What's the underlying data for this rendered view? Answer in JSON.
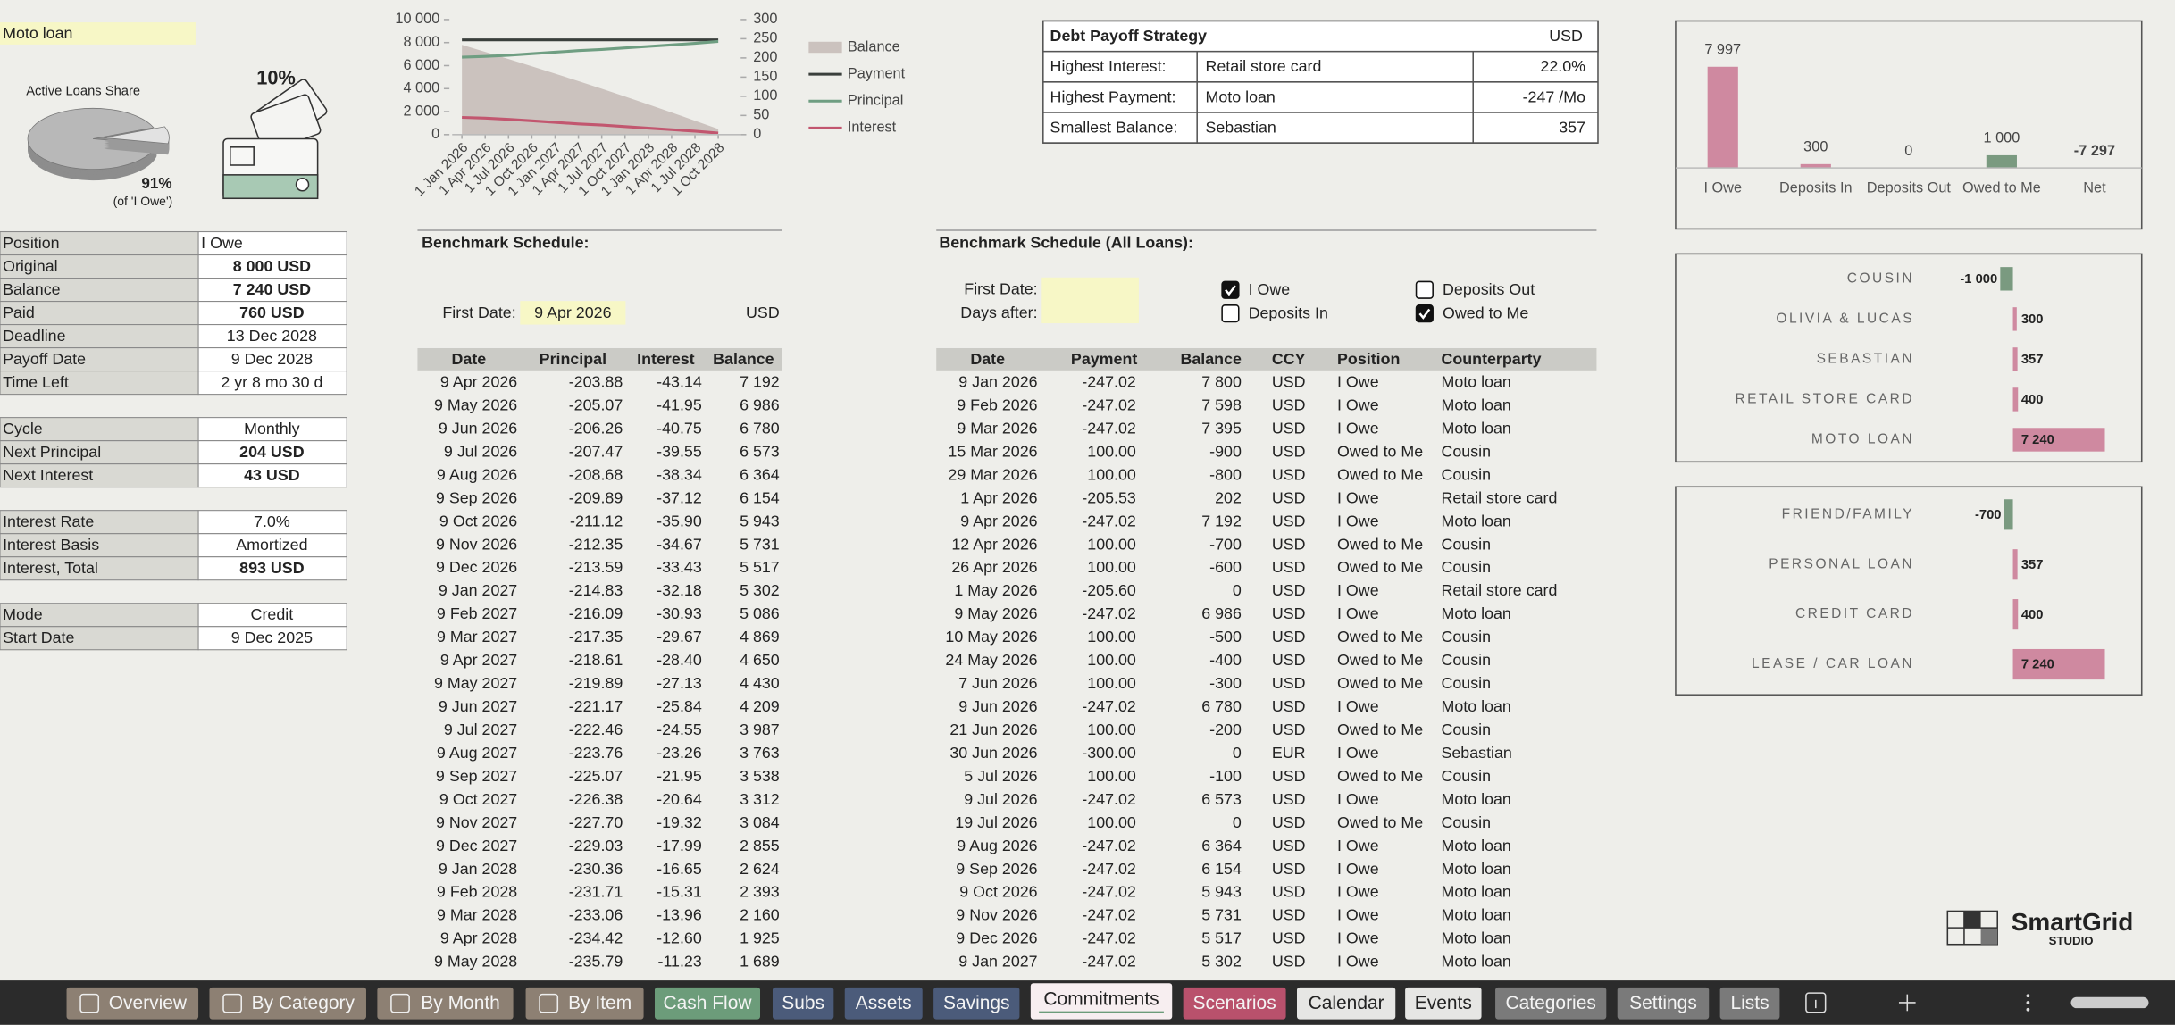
{
  "loan": {
    "name": "Moto loan",
    "share_title": "Active Loans Share",
    "card_pct": "10%",
    "pie": {
      "type": "pie",
      "values": [
        91,
        9
      ],
      "value_labels": [
        "91%",
        null
      ],
      "note": "(of 'I Owe')"
    }
  },
  "details": [
    [
      [
        "Position",
        "I Owe"
      ],
      [
        "Original",
        "8 000  USD"
      ],
      [
        "Balance",
        "7 240  USD"
      ],
      [
        "Paid",
        "760  USD"
      ],
      [
        "Deadline",
        "13 Dec 2028"
      ],
      [
        "Payoff Date",
        "9 Dec 2028"
      ],
      [
        "Time Left",
        "2 yr 8 mo 30 d"
      ]
    ],
    [
      [
        "Cycle",
        "Monthly"
      ],
      [
        "Next Principal",
        "204  USD"
      ],
      [
        "Next Interest",
        "43  USD"
      ]
    ],
    [
      [
        "Interest Rate",
        "7.0%"
      ],
      [
        "Interest Basis",
        "Amortized"
      ],
      [
        "Interest, Total",
        "893  USD"
      ]
    ],
    [
      [
        "Mode",
        "Credit"
      ],
      [
        "Start Date",
        "9 Dec 2025"
      ]
    ]
  ],
  "balance_chart": {
    "type": "line",
    "categories": [
      "1 Jan 2026",
      "1 Apr 2026",
      "1 Jul 2026",
      "1 Oct 2026",
      "1 Jan 2027",
      "1 Apr 2027",
      "1 Jul 2027",
      "1 Oct 2027",
      "1 Jan 2028",
      "1 Apr 2028",
      "1 Jul 2028",
      "1 Oct 2028"
    ],
    "series": [
      {
        "name": "Balance",
        "color": "#cbc2be",
        "axis": "y",
        "values": [
          7800,
          7192,
          6573,
          5943,
          5302,
          4650,
          3987,
          3312,
          2624,
          1925,
          1213,
          490
        ]
      },
      {
        "name": "Payment",
        "color": "#3a3f3c",
        "axis": "y2",
        "values": [
          247,
          247,
          247,
          247,
          247,
          247,
          247,
          247,
          247,
          247,
          247,
          247
        ]
      },
      {
        "name": "Principal",
        "color": "#6f9e82",
        "axis": "y2",
        "values": [
          202,
          204,
          207,
          211,
          215,
          219,
          222,
          226,
          230,
          234,
          238,
          243
        ]
      },
      {
        "name": "Interest",
        "color": "#c2566f",
        "axis": "y2",
        "values": [
          45,
          43,
          40,
          36,
          32,
          28,
          25,
          21,
          17,
          13,
          9,
          4
        ]
      }
    ],
    "ylim": [
      0,
      10000
    ],
    "yticks": [
      0,
      {
        "value": 2000,
        "label": "2 000"
      },
      {
        "value": 4000,
        "label": "4 000"
      },
      {
        "value": 6000,
        "label": "6 000"
      },
      {
        "value": 8000,
        "label": "8 000"
      },
      {
        "value": 10000,
        "label": "10 000"
      }
    ],
    "y2lim": [
      0,
      300
    ],
    "y2ticks": [
      0,
      50,
      100,
      150,
      200,
      250,
      300
    ]
  },
  "strategy": {
    "title": "Debt Payoff Strategy",
    "currency": "USD",
    "rows": [
      [
        "Highest Interest:",
        "Retail store card",
        "22.0%"
      ],
      [
        "Highest Payment:",
        "Moto loan",
        "-247 /Mo"
      ],
      [
        "Smallest Balance:",
        "Sebastian",
        "357"
      ]
    ]
  },
  "totals_chart": {
    "type": "bar",
    "categories": [
      "I Owe",
      "Deposits In",
      "Deposits Out",
      "Owed to Me",
      "Net"
    ],
    "values": [
      7997,
      300,
      0,
      1000,
      -7297
    ],
    "value_labels": [
      "7 997",
      "300",
      "0",
      "1 000",
      "-7 297"
    ],
    "colors": [
      "#cf89a0",
      "#cf89a0",
      "#cf89a0",
      "#7a9a80",
      "#cf89a0"
    ],
    "ylim": [
      0,
      8000
    ]
  },
  "counterparty_chart": {
    "type": "bar",
    "orientation": "horizontal",
    "categories": [
      "COUSIN",
      "OLIVIA & LUCAS",
      "SEBASTIAN",
      "RETAIL STORE CARD",
      "MOTO LOAN"
    ],
    "values": [
      -1000,
      300,
      357,
      400,
      7240
    ],
    "value_labels": [
      "-1 000",
      "300",
      "357",
      "400",
      "7 240"
    ],
    "color_positive": "#cf89a0",
    "color_negative": "#7a9a80",
    "xlim": [
      -1000,
      7300
    ]
  },
  "category_chart": {
    "type": "bar",
    "orientation": "horizontal",
    "categories": [
      "FRIEND/FAMILY",
      "PERSONAL LOAN",
      "CREDIT CARD",
      "LEASE / CAR LOAN"
    ],
    "values": [
      -700,
      357,
      400,
      7240
    ],
    "value_labels": [
      "-700",
      "357",
      "400",
      "7 240"
    ],
    "color_positive": "#cf89a0",
    "color_negative": "#7a9a80",
    "xlim": [
      -1000,
      7300
    ]
  },
  "schedule": {
    "title": "Benchmark Schedule:",
    "first_date_label": "First Date:",
    "first_date": "9 Apr 2026",
    "currency": "USD",
    "columns": [
      "Date",
      "Principal",
      "Interest",
      "Balance"
    ],
    "rows": [
      [
        "9 Apr 2026",
        "-203.88",
        "-43.14",
        "7 192"
      ],
      [
        "9 May 2026",
        "-205.07",
        "-41.95",
        "6 986"
      ],
      [
        "9 Jun 2026",
        "-206.26",
        "-40.75",
        "6 780"
      ],
      [
        "9 Jul 2026",
        "-207.47",
        "-39.55",
        "6 573"
      ],
      [
        "9 Aug 2026",
        "-208.68",
        "-38.34",
        "6 364"
      ],
      [
        "9 Sep 2026",
        "-209.89",
        "-37.12",
        "6 154"
      ],
      [
        "9 Oct 2026",
        "-211.12",
        "-35.90",
        "5 943"
      ],
      [
        "9 Nov 2026",
        "-212.35",
        "-34.67",
        "5 731"
      ],
      [
        "9 Dec 2026",
        "-213.59",
        "-33.43",
        "5 517"
      ],
      [
        "9 Jan 2027",
        "-214.83",
        "-32.18",
        "5 302"
      ],
      [
        "9 Feb 2027",
        "-216.09",
        "-30.93",
        "5 086"
      ],
      [
        "9 Mar 2027",
        "-217.35",
        "-29.67",
        "4 869"
      ],
      [
        "9 Apr 2027",
        "-218.61",
        "-28.40",
        "4 650"
      ],
      [
        "9 May 2027",
        "-219.89",
        "-27.13",
        "4 430"
      ],
      [
        "9 Jun 2027",
        "-221.17",
        "-25.84",
        "4 209"
      ],
      [
        "9 Jul 2027",
        "-222.46",
        "-24.55",
        "3 987"
      ],
      [
        "9 Aug 2027",
        "-223.76",
        "-23.26",
        "3 763"
      ],
      [
        "9 Sep 2027",
        "-225.07",
        "-21.95",
        "3 538"
      ],
      [
        "9 Oct 2027",
        "-226.38",
        "-20.64",
        "3 312"
      ],
      [
        "9 Nov 2027",
        "-227.70",
        "-19.32",
        "3 084"
      ],
      [
        "9 Dec 2027",
        "-229.03",
        "-17.99",
        "2 855"
      ],
      [
        "9 Jan 2028",
        "-230.36",
        "-16.65",
        "2 624"
      ],
      [
        "9 Feb 2028",
        "-231.71",
        "-15.31",
        "2 393"
      ],
      [
        "9 Mar 2028",
        "-233.06",
        "-13.96",
        "2 160"
      ],
      [
        "9 Apr 2028",
        "-234.42",
        "-12.60",
        "1 925"
      ],
      [
        "9 May 2028",
        "-235.79",
        "-11.23",
        "1 689"
      ]
    ]
  },
  "all_schedule": {
    "title": "Benchmark Schedule (All Loans):",
    "first_date_label": "First Date:",
    "days_after_label": "Days after:",
    "filters": [
      {
        "label": "I Owe",
        "checked": true
      },
      {
        "label": "Deposits Out",
        "checked": false
      },
      {
        "label": "Deposits In",
        "checked": false
      },
      {
        "label": "Owed to Me",
        "checked": true
      }
    ],
    "columns": [
      "Date",
      "Payment",
      "Balance",
      "CCY",
      "Position",
      "Counterparty"
    ],
    "rows": [
      [
        "9 Jan 2026",
        "-247.02",
        "7 800",
        "USD",
        "I Owe",
        "Moto loan"
      ],
      [
        "9 Feb 2026",
        "-247.02",
        "7 598",
        "USD",
        "I Owe",
        "Moto loan"
      ],
      [
        "9 Mar 2026",
        "-247.02",
        "7 395",
        "USD",
        "I Owe",
        "Moto loan"
      ],
      [
        "15 Mar 2026",
        "100.00",
        "-900",
        "USD",
        "Owed to Me",
        "Cousin"
      ],
      [
        "29 Mar 2026",
        "100.00",
        "-800",
        "USD",
        "Owed to Me",
        "Cousin"
      ],
      [
        "1 Apr 2026",
        "-205.53",
        "202",
        "USD",
        "I Owe",
        "Retail store card"
      ],
      [
        "9 Apr 2026",
        "-247.02",
        "7 192",
        "USD",
        "I Owe",
        "Moto loan"
      ],
      [
        "12 Apr 2026",
        "100.00",
        "-700",
        "USD",
        "Owed to Me",
        "Cousin"
      ],
      [
        "26 Apr 2026",
        "100.00",
        "-600",
        "USD",
        "Owed to Me",
        "Cousin"
      ],
      [
        "1 May 2026",
        "-205.60",
        "0",
        "USD",
        "I Owe",
        "Retail store card"
      ],
      [
        "9 May 2026",
        "-247.02",
        "6 986",
        "USD",
        "I Owe",
        "Moto loan"
      ],
      [
        "10 May 2026",
        "100.00",
        "-500",
        "USD",
        "Owed to Me",
        "Cousin"
      ],
      [
        "24 May 2026",
        "100.00",
        "-400",
        "USD",
        "Owed to Me",
        "Cousin"
      ],
      [
        "7 Jun 2026",
        "100.00",
        "-300",
        "USD",
        "Owed to Me",
        "Cousin"
      ],
      [
        "9 Jun 2026",
        "-247.02",
        "6 780",
        "USD",
        "I Owe",
        "Moto loan"
      ],
      [
        "21 Jun 2026",
        "100.00",
        "-200",
        "USD",
        "Owed to Me",
        "Cousin"
      ],
      [
        "30 Jun 2026",
        "-300.00",
        "0",
        "EUR",
        "I Owe",
        "Sebastian"
      ],
      [
        "5 Jul 2026",
        "100.00",
        "-100",
        "USD",
        "Owed to Me",
        "Cousin"
      ],
      [
        "9 Jul 2026",
        "-247.02",
        "6 573",
        "USD",
        "I Owe",
        "Moto loan"
      ],
      [
        "19 Jul 2026",
        "100.00",
        "0",
        "USD",
        "Owed to Me",
        "Cousin"
      ],
      [
        "9 Aug 2026",
        "-247.02",
        "6 364",
        "USD",
        "I Owe",
        "Moto loan"
      ],
      [
        "9 Sep 2026",
        "-247.02",
        "6 154",
        "USD",
        "I Owe",
        "Moto loan"
      ],
      [
        "9 Oct 2026",
        "-247.02",
        "5 943",
        "USD",
        "I Owe",
        "Moto loan"
      ],
      [
        "9 Nov 2026",
        "-247.02",
        "5 731",
        "USD",
        "I Owe",
        "Moto loan"
      ],
      [
        "9 Dec 2026",
        "-247.02",
        "5 517",
        "USD",
        "I Owe",
        "Moto loan"
      ],
      [
        "9 Jan 2027",
        "-247.02",
        "5 302",
        "USD",
        "I Owe",
        "Moto loan"
      ]
    ]
  },
  "logo": {
    "name": "SmartGrid",
    "sub": "STUDIO"
  },
  "tabs": [
    {
      "label": "Overview",
      "color": "#8d8073"
    },
    {
      "label": "By Category",
      "color": "#8d8073"
    },
    {
      "label": "By Month",
      "color": "#8d8073"
    },
    {
      "label": "By Item",
      "color": "#8d8073"
    },
    {
      "label": "Cash Flow",
      "color": "#6c9c7a"
    },
    {
      "label": "Subs",
      "color": "#4b5b7a"
    },
    {
      "label": "Assets",
      "color": "#4b5b7a"
    },
    {
      "label": "Savings",
      "color": "#4b5b7a"
    },
    {
      "label": "Commitments",
      "color": "#f7eef0"
    },
    {
      "label": "Scenarios",
      "color": "#b9516c"
    },
    {
      "label": "Calendar",
      "color": "#e6e6e4"
    },
    {
      "label": "Events",
      "color": "#e6e6e4"
    },
    {
      "label": "Categories",
      "color": "#7a7a7a"
    },
    {
      "label": "Settings",
      "color": "#7a7a7a"
    },
    {
      "label": "Lists",
      "color": "#7a7a7a"
    }
  ],
  "active_tab": 8
}
